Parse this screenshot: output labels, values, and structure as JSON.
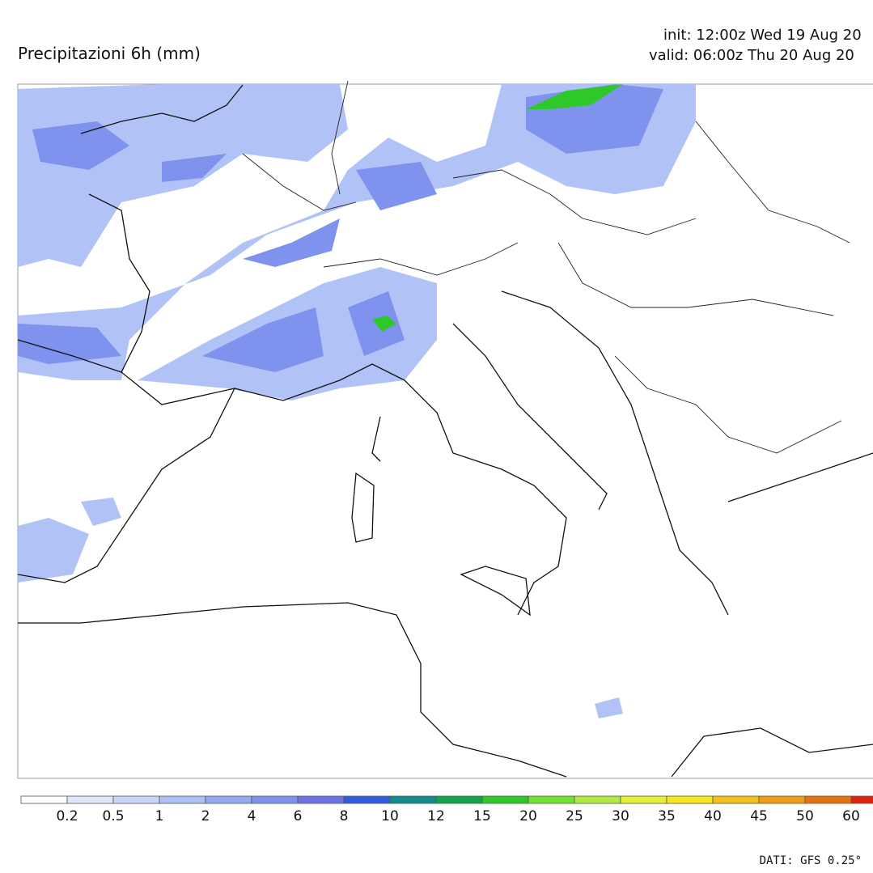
{
  "header": {
    "title": "Precipitazioni 6h (mm)",
    "init": "init: 12:00z Wed 19 Aug 20",
    "valid": "valid: 06:00z Thu 20 Aug 20"
  },
  "legend": {
    "levels": [
      0.2,
      0.5,
      1,
      2,
      4,
      6,
      8,
      10,
      12,
      15,
      20,
      25,
      30,
      35,
      40,
      45,
      50,
      60
    ],
    "colors": [
      "#ffffff",
      "#dfe7fb",
      "#c8d5f9",
      "#adc0f6",
      "#93a9f2",
      "#7e92ee",
      "#6c73e4",
      "#2f5de0",
      "#138a8c",
      "#12a64a",
      "#2fc82a",
      "#73e22e",
      "#b0eb40",
      "#e6ee3a",
      "#f7e51d",
      "#f3c11a",
      "#ee9c14",
      "#e6730f",
      "#e0200e"
    ]
  },
  "footer": {
    "credit": "DATI: GFS 0.25°"
  }
}
